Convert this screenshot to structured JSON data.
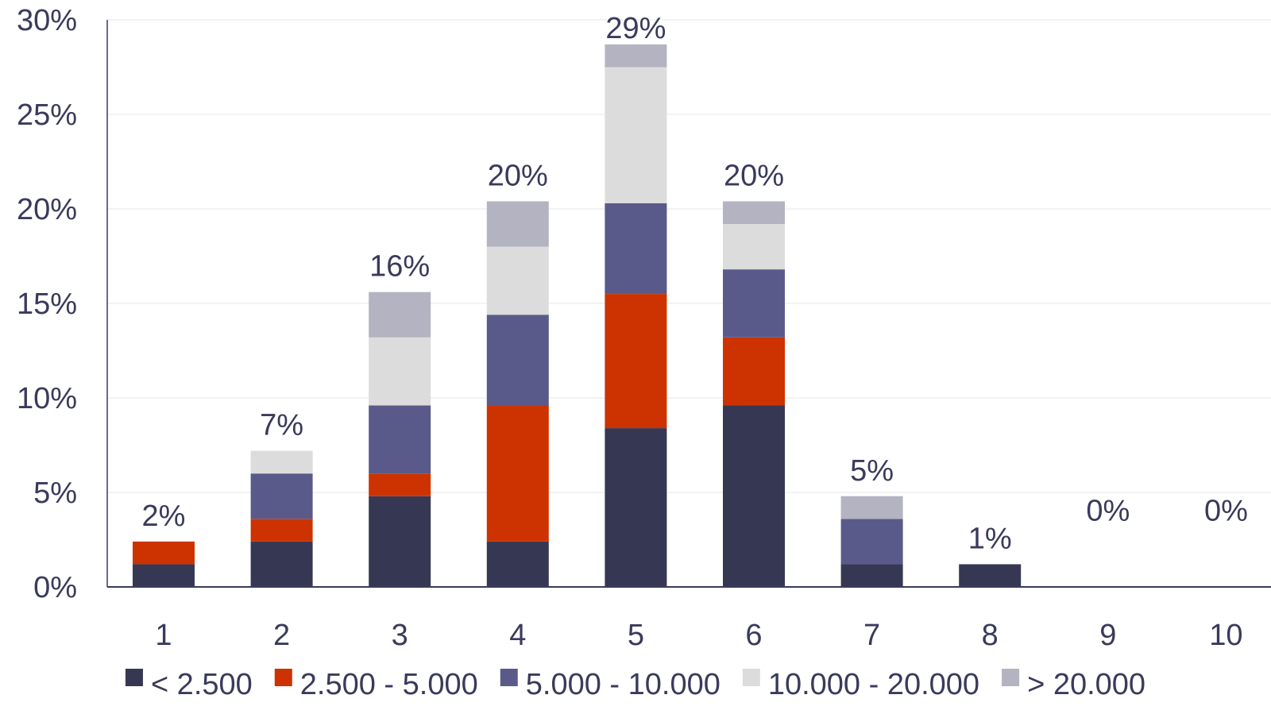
{
  "chart_data": {
    "type": "bar",
    "stacked": true,
    "categories": [
      "1",
      "2",
      "3",
      "4",
      "5",
      "6",
      "7",
      "8",
      "9",
      "10"
    ],
    "series": [
      {
        "name": "< 2.500",
        "color": "#363853",
        "values": [
          1.2,
          2.4,
          4.8,
          2.4,
          8.4,
          9.6,
          1.2,
          1.2,
          0,
          0
        ]
      },
      {
        "name": "2.500 - 5.000",
        "color": "#cc3300",
        "values": [
          1.2,
          1.2,
          1.2,
          7.2,
          7.1,
          3.6,
          0,
          0,
          0,
          0
        ]
      },
      {
        "name": "5.000 - 10.000",
        "color": "#5a5a8a",
        "values": [
          0,
          2.4,
          3.6,
          4.8,
          4.8,
          3.6,
          2.4,
          0,
          0,
          0
        ]
      },
      {
        "name": "10.000 - 20.000",
        "color": "#dcdcdc",
        "values": [
          0,
          1.2,
          3.6,
          3.6,
          7.2,
          2.4,
          0,
          0,
          0,
          0
        ]
      },
      {
        "name": "> 20.000",
        "color": "#b3b3c1",
        "values": [
          0,
          0,
          2.4,
          2.4,
          1.2,
          1.2,
          1.2,
          0,
          0,
          0
        ]
      }
    ],
    "totals": [
      "2%",
      "7%",
      "16%",
      "20%",
      "29%",
      "20%",
      "5%",
      "1%",
      "0%",
      "0%"
    ],
    "y_ticks": [
      "0%",
      "5%",
      "10%",
      "15%",
      "20%",
      "25%",
      "30%"
    ],
    "y_tick_values": [
      0,
      5,
      10,
      15,
      20,
      25,
      30
    ],
    "ylim": [
      0,
      30
    ],
    "grid": true,
    "legend_position": "bottom"
  }
}
